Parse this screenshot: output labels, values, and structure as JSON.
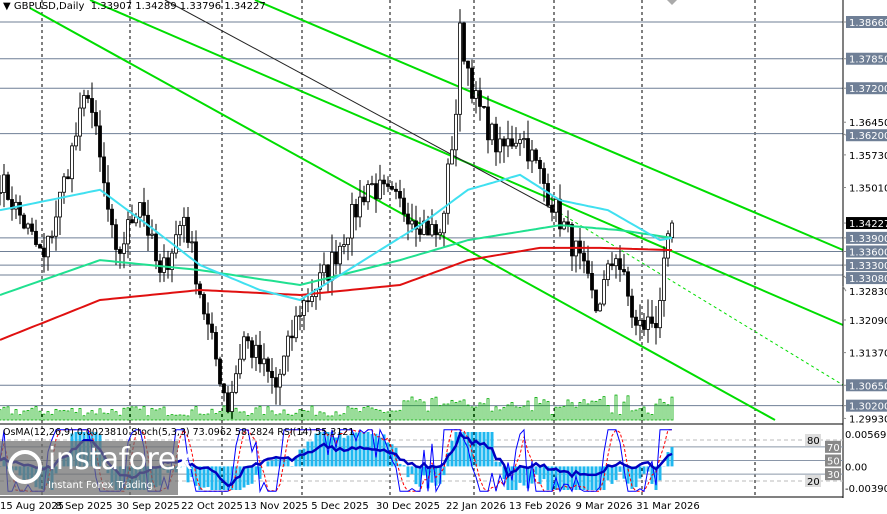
{
  "header": {
    "symbol": "GBPUSD,Daily",
    "ohlc": "1.33907 1.34289 1.33796 1.34227",
    "menu_icon": "triangle-down-icon"
  },
  "indicator_title": "OsMA(12,26,9) 0.0023810  Stoch(5,3,3) 73.0962 58.2824  RSI(14) 55.3121",
  "logo": {
    "name": "instaforex",
    "tagline": "Instant Forex Trading"
  },
  "colors": {
    "candle": "#000000",
    "bull_fill": "#ffffff",
    "ma_fast": "#40e0f0",
    "ma_mid": "#20e090",
    "ma_slow": "#e01010",
    "channel": "#00dd00",
    "level": "#6f7f96",
    "volume": "#00aa00",
    "osma": "#20b8f0",
    "stoch_main": "#0000ff",
    "stoch_signal": "#ff0000",
    "rsi": "#0000c0"
  },
  "chart_data": {
    "type": "candlestick",
    "symbol": "GBPUSD",
    "timeframe": "Daily",
    "last": {
      "open": 1.33907,
      "high": 1.34289,
      "low": 1.33796,
      "close": 1.34227
    },
    "ylim": [
      1.2985,
      1.3905
    ],
    "price_ticks": [
      "1.36450",
      "1.35730",
      "1.35010",
      "1.32830",
      "1.32090",
      "1.31370",
      "1.29930"
    ],
    "levels": [
      "1.38660",
      "1.37850",
      "1.37200",
      "1.36200",
      "1.33900",
      "1.33600",
      "1.33300",
      "1.33080",
      "1.30650",
      "1.30200"
    ],
    "current_price": "1.34227",
    "date_labels": [
      {
        "date": "2025-08-15",
        "text": "15 Aug 2025"
      },
      {
        "date": "2025-09-08",
        "text": "8 Sep 2025"
      },
      {
        "date": "2025-09-30",
        "text": "30 Sep 2025"
      },
      {
        "date": "2025-10-22",
        "text": "22 Oct 2025"
      },
      {
        "date": "2025-11-13",
        "text": "13 Nov 2025"
      },
      {
        "date": "2025-12-05",
        "text": "5 Dec 2025"
      },
      {
        "date": "2025-12-30",
        "text": "30 Dec 2025"
      },
      {
        "date": "2026-01-22",
        "text": "22 Jan 2026"
      },
      {
        "date": "2026-02-13",
        "text": "13 Feb 2026"
      },
      {
        "date": "2026-03-09",
        "text": "9 Mar 2026"
      },
      {
        "date": "2026-03-31",
        "text": "31 Mar 2026"
      }
    ],
    "close_path": [
      [
        "2025-08-08",
        1.352
      ],
      [
        "2025-08-25",
        1.334
      ],
      [
        "2025-09-09",
        1.372
      ],
      [
        "2025-09-18",
        1.334
      ],
      [
        "2025-09-26",
        1.348
      ],
      [
        "2025-10-03",
        1.33
      ],
      [
        "2025-10-13",
        1.344
      ],
      [
        "2025-10-21",
        1.319
      ],
      [
        "2025-10-28",
        1.302
      ],
      [
        "2025-11-03",
        1.317
      ],
      [
        "2025-11-13",
        1.306
      ],
      [
        "2025-11-21",
        1.3234
      ],
      [
        "2025-12-02",
        1.332
      ],
      [
        "2025-12-16",
        1.351
      ],
      [
        "2025-12-30",
        1.345
      ],
      [
        "2026-01-09",
        1.339
      ],
      [
        "2026-01-15",
        1.367
      ],
      [
        "2026-01-16",
        1.384
      ],
      [
        "2026-01-22",
        1.369
      ],
      [
        "2026-01-30",
        1.358
      ],
      [
        "2026-02-06",
        1.3624
      ],
      [
        "2026-02-13",
        1.353
      ],
      [
        "2026-02-19",
        1.345
      ],
      [
        "2026-02-26",
        1.336
      ],
      [
        "2026-03-05",
        1.3234
      ],
      [
        "2026-03-12",
        1.336
      ],
      [
        "2026-03-19",
        1.319
      ],
      [
        "2026-03-26",
        1.321
      ],
      [
        "2026-04-01",
        1.34227
      ]
    ],
    "ma_fast": [
      [
        "2025-08-08",
        1.3451
      ],
      [
        "2025-09-12",
        1.3496
      ],
      [
        "2025-09-30",
        1.3418
      ],
      [
        "2025-10-17",
        1.333
      ],
      [
        "2025-11-07",
        1.3275
      ],
      [
        "2025-11-21",
        1.3253
      ],
      [
        "2025-12-09",
        1.3319
      ],
      [
        "2026-01-02",
        1.3418
      ],
      [
        "2026-01-20",
        1.3496
      ],
      [
        "2026-02-06",
        1.3529
      ],
      [
        "2026-02-20",
        1.3473
      ],
      [
        "2026-03-10",
        1.3451
      ],
      [
        "2026-03-27",
        1.3385
      ],
      [
        "2026-04-01",
        1.339
      ]
    ],
    "ma_mid": [
      [
        "2025-08-08",
        1.3264
      ],
      [
        "2025-09-12",
        1.3341
      ],
      [
        "2025-10-17",
        1.3319
      ],
      [
        "2025-11-21",
        1.3286
      ],
      [
        "2025-12-26",
        1.3341
      ],
      [
        "2026-01-20",
        1.3385
      ],
      [
        "2026-02-20",
        1.3418
      ],
      [
        "2026-03-13",
        1.3407
      ],
      [
        "2026-04-01",
        1.339
      ]
    ],
    "ma_slow": [
      [
        "2025-08-08",
        1.3165
      ],
      [
        "2025-09-12",
        1.3253
      ],
      [
        "2025-10-17",
        1.3275
      ],
      [
        "2025-11-21",
        1.3264
      ],
      [
        "2025-12-26",
        1.3286
      ],
      [
        "2026-01-20",
        1.3341
      ],
      [
        "2026-02-13",
        1.3368
      ],
      [
        "2026-03-06",
        1.3368
      ],
      [
        "2026-04-01",
        1.3363
      ]
    ],
    "osma": {
      "value": 0.002381,
      "ylim": [
        -0.003907,
        0.005692
      ],
      "ticks": [
        "0.005692",
        "0.00",
        "-0.003907"
      ]
    },
    "stoch": {
      "params": "5,3,3",
      "main": 73.0962,
      "signal": 58.2824,
      "levels": [
        "80",
        "70",
        "50",
        "30",
        "20"
      ]
    },
    "rsi": {
      "params": "14",
      "value": 55.3121
    }
  }
}
